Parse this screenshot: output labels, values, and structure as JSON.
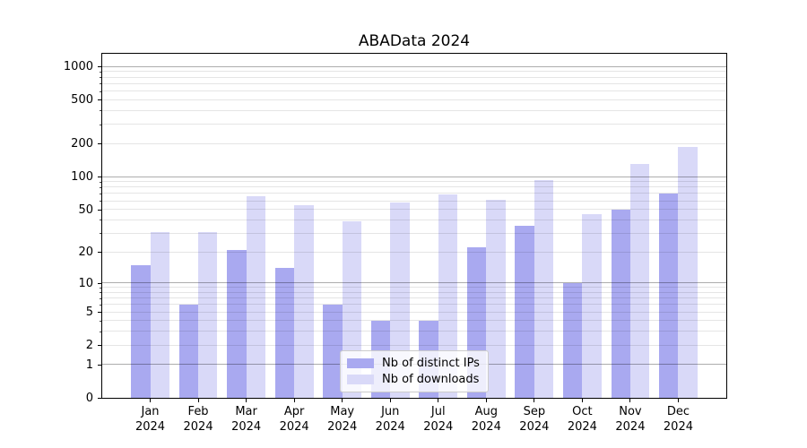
{
  "chart_data": {
    "type": "bar",
    "title": "ABAData 2024",
    "scale": "log1p",
    "ylim": [
      0,
      1308
    ],
    "grid": "both",
    "legend_position": "lower-center",
    "yticks": [
      0,
      1,
      2,
      5,
      10,
      20,
      50,
      100,
      200,
      500,
      1000
    ],
    "categories": [
      {
        "month": "Jan",
        "year": "2024"
      },
      {
        "month": "Feb",
        "year": "2024"
      },
      {
        "month": "Mar",
        "year": "2024"
      },
      {
        "month": "Apr",
        "year": "2024"
      },
      {
        "month": "May",
        "year": "2024"
      },
      {
        "month": "Jun",
        "year": "2024"
      },
      {
        "month": "Jul",
        "year": "2024"
      },
      {
        "month": "Aug",
        "year": "2024"
      },
      {
        "month": "Sep",
        "year": "2024"
      },
      {
        "month": "Oct",
        "year": "2024"
      },
      {
        "month": "Nov",
        "year": "2024"
      },
      {
        "month": "Dec",
        "year": "2024"
      }
    ],
    "series": [
      {
        "name": "Nb of distinct IPs",
        "color": "#a9a9f0",
        "values": [
          15,
          6,
          21,
          14,
          6,
          4,
          4,
          22,
          35,
          10,
          50,
          70
        ]
      },
      {
        "name": "Nb of downloads",
        "color": "#d9d9f8",
        "values": [
          31,
          31,
          66,
          55,
          39,
          58,
          68,
          61,
          92,
          45,
          130,
          186
        ]
      }
    ]
  }
}
